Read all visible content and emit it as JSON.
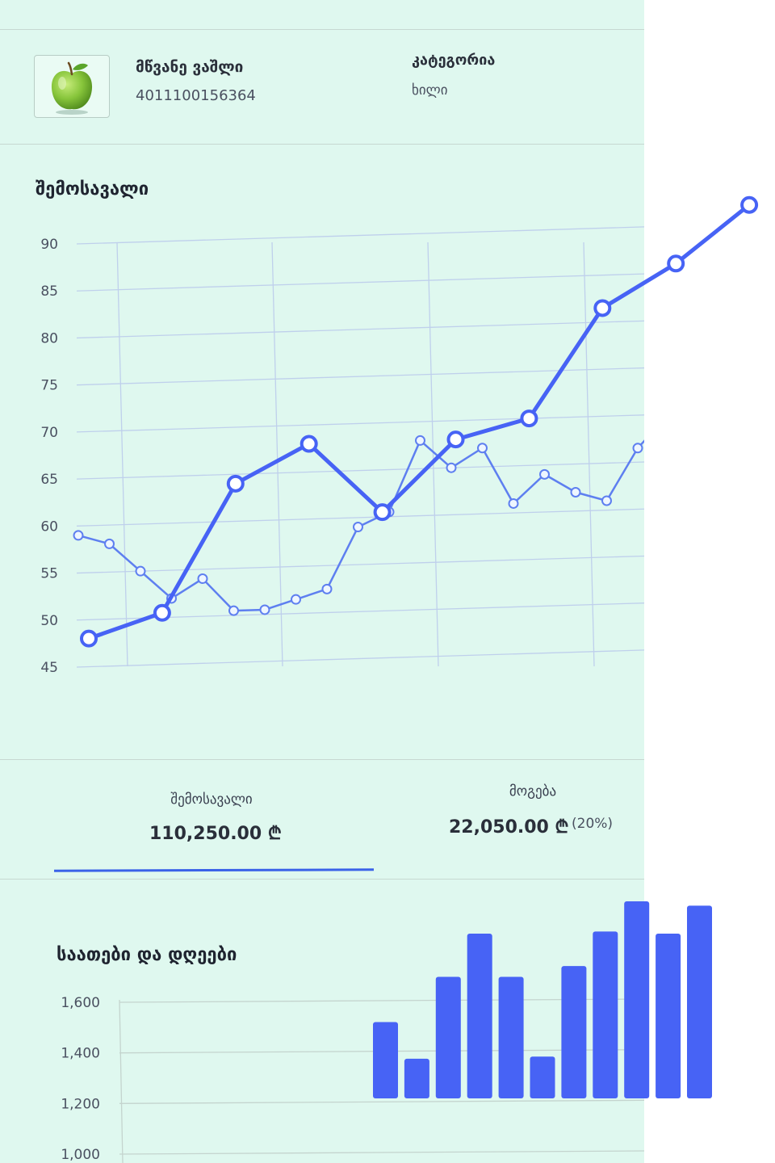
{
  "product": {
    "name": "მწვანე ვაშლი",
    "code": "4011100156364",
    "category_label": "კატეგორია",
    "category_value": "ხილი",
    "image_icon": "green-apple-icon"
  },
  "revenue_section": {
    "title": "შემოსავალი"
  },
  "stats": {
    "revenue_label": "შემოსავალი",
    "revenue_value": "110,250.00 ₾",
    "profit_label": "მოგება",
    "profit_value": "22,050.00 ₾",
    "profit_pct": "(20%)"
  },
  "hours_section": {
    "title": "საათები და დღეები"
  },
  "colors": {
    "accent": "#4763f5",
    "panel": "#dff8ef",
    "line_secondary": "#5e7ff0"
  },
  "chart_data": [
    {
      "type": "line",
      "y_ticks": [
        "90",
        "85",
        "80",
        "75",
        "70",
        "65",
        "60",
        "55",
        "50",
        "45"
      ],
      "ylim": [
        45,
        90
      ],
      "grid": true,
      "series": [
        {
          "values": [
            59,
            58,
            55,
            52,
            54,
            50.5,
            50.5,
            51.5,
            52.5,
            59,
            60.5,
            68,
            65,
            67,
            61,
            64,
            62,
            61,
            66.5,
            70
          ]
        },
        {
          "values": [
            48,
            50.5,
            64,
            68,
            60.5,
            68,
            70,
            81.5,
            86,
            92
          ]
        }
      ]
    },
    {
      "type": "bar",
      "y_ticks": [
        "1,600",
        "1,400",
        "1,200",
        "1,000"
      ],
      "ylim": [
        1000,
        1600
      ],
      "values": [
        1255,
        1170,
        1360,
        1460,
        1360,
        1175,
        1385,
        1465,
        1535,
        1460,
        1525
      ]
    }
  ]
}
